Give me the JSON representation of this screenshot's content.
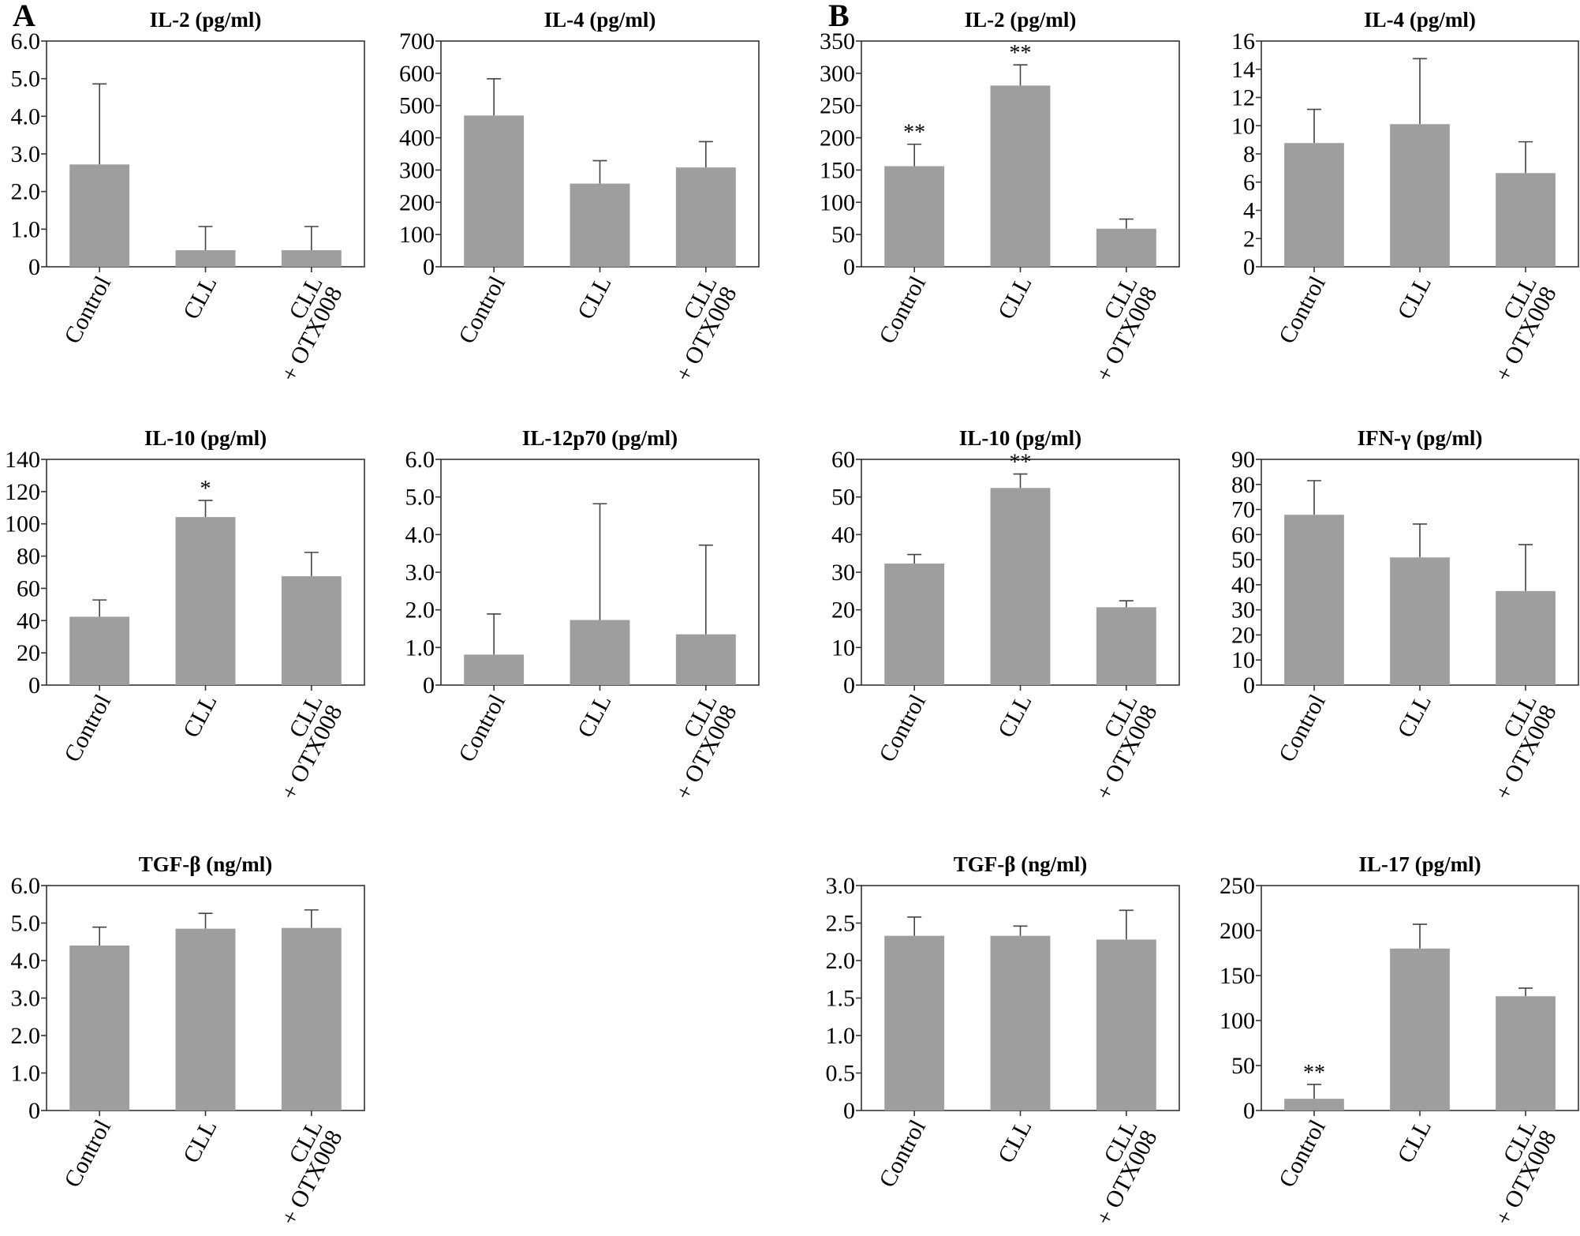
{
  "figure": {
    "panel_letters": [
      "A",
      "B"
    ],
    "bar_color": "#9e9e9e",
    "error_bar_color": "#444444"
  },
  "chart_data": [
    {
      "id": "A-IL2",
      "panel": "A",
      "type": "bar",
      "title": "IL-2 (pg/ml)",
      "categories": [
        "Control",
        "CLL",
        "CLL\n+ OTX008"
      ],
      "values": [
        2.72,
        0.44,
        0.44
      ],
      "error_upper": [
        4.86,
        1.07,
        1.07
      ],
      "significance": [
        "",
        "",
        ""
      ],
      "ylim": [
        0,
        6
      ],
      "yticks": [
        0,
        1,
        2,
        3,
        4,
        5,
        6
      ],
      "ytick_labels": [
        "0",
        "1.0",
        "2.0",
        "3.0",
        "4.0",
        "5.0",
        "6.0"
      ],
      "xlabel": "",
      "ylabel": "",
      "grid": false
    },
    {
      "id": "A-IL4",
      "panel": "A",
      "type": "bar",
      "title": "IL-4 (pg/ml)",
      "categories": [
        "Control",
        "CLL",
        "CLL\n+ OTX008"
      ],
      "values": [
        469,
        258,
        308
      ],
      "error_upper": [
        583,
        329,
        388
      ],
      "significance": [
        "",
        "",
        ""
      ],
      "ylim": [
        0,
        700
      ],
      "yticks": [
        0,
        100,
        200,
        300,
        400,
        500,
        600,
        700
      ],
      "ytick_labels": [
        "0",
        "100",
        "200",
        "300",
        "400",
        "500",
        "600",
        "700"
      ],
      "xlabel": "",
      "ylabel": "",
      "grid": false
    },
    {
      "id": "B-IL2",
      "panel": "B",
      "type": "bar",
      "title": "IL-2 (pg/ml)",
      "categories": [
        "Control",
        "CLL",
        "CLL\n+ OTX008"
      ],
      "values": [
        156,
        281,
        59
      ],
      "error_upper": [
        190,
        313,
        74
      ],
      "significance": [
        "**",
        "**",
        ""
      ],
      "ylim": [
        0,
        350
      ],
      "yticks": [
        0,
        50,
        100,
        150,
        200,
        250,
        300,
        350
      ],
      "ytick_labels": [
        "0",
        "50",
        "100",
        "150",
        "200",
        "250",
        "300",
        "350"
      ],
      "xlabel": "",
      "ylabel": "",
      "grid": false
    },
    {
      "id": "B-IL4",
      "panel": "B",
      "type": "bar",
      "title": "IL-4 (pg/ml)",
      "categories": [
        "Control",
        "CLL",
        "CLL\n+ OTX008"
      ],
      "values": [
        8.77,
        10.11,
        6.64
      ],
      "error_upper": [
        11.16,
        14.75,
        8.86
      ],
      "significance": [
        "",
        "",
        ""
      ],
      "ylim": [
        0,
        16
      ],
      "yticks": [
        0,
        2,
        4,
        6,
        8,
        10,
        12,
        14,
        16
      ],
      "ytick_labels": [
        "0",
        "2",
        "4",
        "6",
        "8",
        "10",
        "12",
        "14",
        "16"
      ],
      "xlabel": "",
      "ylabel": "",
      "grid": false
    },
    {
      "id": "A-IL10",
      "panel": "A",
      "type": "bar",
      "title": "IL-10 (pg/ml)",
      "categories": [
        "Control",
        "CLL",
        "CLL\n+ OTX008"
      ],
      "values": [
        42.4,
        104.2,
        67.5
      ],
      "error_upper": [
        52.8,
        114.5,
        82.3
      ],
      "significance": [
        "",
        "*",
        ""
      ],
      "ylim": [
        0,
        140
      ],
      "yticks": [
        0,
        20,
        40,
        60,
        80,
        100,
        120,
        140
      ],
      "ytick_labels": [
        "0",
        "20",
        "40",
        "60",
        "80",
        "100",
        "120",
        "140"
      ],
      "xlabel": "",
      "ylabel": "",
      "grid": false
    },
    {
      "id": "A-IL12p70",
      "panel": "A",
      "type": "bar",
      "title": "IL-12p70 (pg/ml)",
      "categories": [
        "Control",
        "CLL",
        "CLL\n+ OTX008"
      ],
      "values": [
        0.81,
        1.73,
        1.35
      ],
      "error_upper": [
        1.89,
        4.82,
        3.72
      ],
      "significance": [
        "",
        "",
        ""
      ],
      "ylim": [
        0,
        6
      ],
      "yticks": [
        0,
        1,
        2,
        3,
        4,
        5,
        6
      ],
      "ytick_labels": [
        "0",
        "1.0",
        "2.0",
        "3.0",
        "4.0",
        "5.0",
        "6.0"
      ],
      "xlabel": "",
      "ylabel": "",
      "grid": false
    },
    {
      "id": "B-IL10",
      "panel": "B",
      "type": "bar",
      "title": "IL-10 (pg/ml)",
      "categories": [
        "Control",
        "CLL",
        "CLL\n+ OTX008"
      ],
      "values": [
        32.3,
        52.4,
        20.7
      ],
      "error_upper": [
        34.7,
        56.1,
        22.4
      ],
      "significance": [
        "",
        "**",
        ""
      ],
      "ylim": [
        0,
        60
      ],
      "yticks": [
        0,
        10,
        20,
        30,
        40,
        50,
        60
      ],
      "ytick_labels": [
        "0",
        "10",
        "20",
        "30",
        "40",
        "50",
        "60"
      ],
      "xlabel": "",
      "ylabel": "",
      "grid": false
    },
    {
      "id": "B-IFNg",
      "panel": "B",
      "type": "bar",
      "title": "IFN-γ (pg/ml)",
      "categories": [
        "Control",
        "CLL",
        "CLL\n+ OTX008"
      ],
      "values": [
        67.9,
        50.9,
        37.5
      ],
      "error_upper": [
        81.5,
        64.2,
        56.0
      ],
      "significance": [
        "",
        "",
        ""
      ],
      "ylim": [
        0,
        90
      ],
      "yticks": [
        0,
        10,
        20,
        30,
        40,
        50,
        60,
        70,
        80,
        90
      ],
      "ytick_labels": [
        "0",
        "10",
        "20",
        "30",
        "40",
        "50",
        "60",
        "70",
        "80",
        "90"
      ],
      "xlabel": "",
      "ylabel": "",
      "grid": false
    },
    {
      "id": "A-TGFb",
      "panel": "A",
      "type": "bar",
      "title": "TGF-β (ng/ml)",
      "categories": [
        "Control",
        "CLL",
        "CLL\n+ OTX008"
      ],
      "values": [
        4.4,
        4.85,
        4.87
      ],
      "error_upper": [
        4.89,
        5.26,
        5.35
      ],
      "significance": [
        "",
        "",
        ""
      ],
      "ylim": [
        0,
        6
      ],
      "yticks": [
        0,
        1,
        2,
        3,
        4,
        5,
        6
      ],
      "ytick_labels": [
        "0",
        "1.0",
        "2.0",
        "3.0",
        "4.0",
        "5.0",
        "6.0"
      ],
      "xlabel": "",
      "ylabel": "",
      "grid": false
    },
    {
      "id": "B-TGFb",
      "panel": "B",
      "type": "bar",
      "title": "TGF-β (ng/ml)",
      "categories": [
        "Control",
        "CLL",
        "CLL\n+ OTX008"
      ],
      "values": [
        2.33,
        2.33,
        2.28
      ],
      "error_upper": [
        2.58,
        2.46,
        2.67
      ],
      "significance": [
        "",
        "",
        ""
      ],
      "ylim": [
        0,
        3
      ],
      "yticks": [
        0,
        0.5,
        1,
        1.5,
        2,
        2.5,
        3
      ],
      "ytick_labels": [
        "0",
        "0.5",
        "1.0",
        "1.5",
        "2.0",
        "2.5",
        "3.0"
      ],
      "xlabel": "",
      "ylabel": "",
      "grid": false
    },
    {
      "id": "B-IL17",
      "panel": "B",
      "type": "bar",
      "title": "IL-17 (pg/ml)",
      "categories": [
        "Control",
        "CLL",
        "CLL\n+ OTX008"
      ],
      "values": [
        13,
        180,
        127
      ],
      "error_upper": [
        29,
        207,
        136
      ],
      "significance": [
        "**",
        "",
        ""
      ],
      "ylim": [
        0,
        250
      ],
      "yticks": [
        0,
        50,
        100,
        150,
        200,
        250
      ],
      "ytick_labels": [
        "0",
        "50",
        "100",
        "150",
        "200",
        "250"
      ],
      "xlabel": "",
      "ylabel": "",
      "grid": false
    }
  ]
}
